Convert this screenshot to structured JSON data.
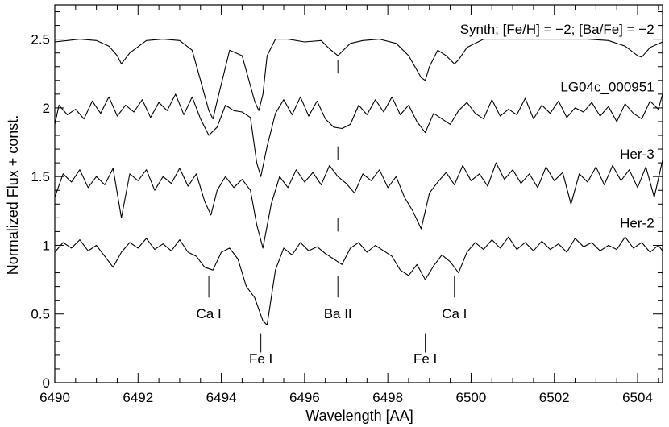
{
  "chart_data": {
    "type": "line",
    "title": "",
    "xlabel": "Wavelength [AA]",
    "ylabel": "Normalized Flux + const.",
    "xlim": [
      6490,
      6504.6
    ],
    "ylim": [
      0,
      2.75
    ],
    "grid": false,
    "legend": "none",
    "x_ticks": [
      6490,
      6492,
      6494,
      6496,
      6498,
      6500,
      6502,
      6504
    ],
    "y_ticks": [
      0,
      0.5,
      1,
      1.5,
      2,
      2.5
    ],
    "y_tick_labels": [
      "0",
      "0.5",
      "1",
      "1.5",
      "2",
      "2.5"
    ],
    "series": [
      {
        "name": "Synth; [Fe/H] = −2; [Ba/Fe] = −2",
        "x": [
          6490.0,
          6490.3,
          6490.6,
          6491.0,
          6491.3,
          6491.5,
          6491.6,
          6491.8,
          6492.2,
          6492.6,
          6493.0,
          6493.3,
          6493.5,
          6493.7,
          6493.8,
          6493.9,
          6494.2,
          6494.5,
          6494.8,
          6494.9,
          6495.0,
          6495.1,
          6495.3,
          6495.6,
          6496.0,
          6496.4,
          6496.6,
          6496.8,
          6496.9,
          6497.1,
          6497.4,
          6497.8,
          6498.2,
          6498.5,
          6498.8,
          6498.9,
          6499.0,
          6499.2,
          6499.4,
          6499.6,
          6499.7,
          6499.9,
          6500.3,
          6500.8,
          6501.3,
          6501.8,
          6502.3,
          6502.8,
          6503.3,
          6503.7,
          6504.0,
          6504.1,
          6504.3,
          6504.6
        ],
        "values": [
          2.48,
          2.49,
          2.5,
          2.49,
          2.45,
          2.38,
          2.32,
          2.4,
          2.49,
          2.5,
          2.49,
          2.42,
          2.2,
          1.98,
          1.92,
          2.05,
          2.42,
          2.38,
          2.05,
          1.98,
          2.1,
          2.38,
          2.5,
          2.5,
          2.48,
          2.49,
          2.43,
          2.38,
          2.41,
          2.47,
          2.49,
          2.5,
          2.47,
          2.38,
          2.22,
          2.2,
          2.3,
          2.42,
          2.38,
          2.32,
          2.35,
          2.44,
          2.5,
          2.5,
          2.5,
          2.5,
          2.5,
          2.5,
          2.49,
          2.45,
          2.38,
          2.37,
          2.44,
          2.48
        ]
      },
      {
        "name": "LG04c_000951",
        "x": [
          6490.0,
          6490.1,
          6490.3,
          6490.5,
          6490.7,
          6490.9,
          6491.1,
          6491.3,
          6491.5,
          6491.7,
          6491.9,
          6492.1,
          6492.3,
          6492.5,
          6492.7,
          6492.9,
          6493.1,
          6493.3,
          6493.5,
          6493.7,
          6493.9,
          6494.1,
          6494.3,
          6494.5,
          6494.7,
          6494.85,
          6494.95,
          6495.1,
          6495.3,
          6495.5,
          6495.7,
          6495.9,
          6496.1,
          6496.3,
          6496.5,
          6496.7,
          6496.9,
          6497.1,
          6497.3,
          6497.5,
          6497.7,
          6497.9,
          6498.1,
          6498.3,
          6498.5,
          6498.7,
          6498.9,
          6499.1,
          6499.3,
          6499.5,
          6499.7,
          6499.9,
          6500.1,
          6500.3,
          6500.5,
          6500.7,
          6500.9,
          6501.1,
          6501.3,
          6501.5,
          6501.7,
          6501.9,
          6502.1,
          6502.3,
          6502.5,
          6502.7,
          6502.9,
          6503.1,
          6503.3,
          6503.5,
          6503.7,
          6503.9,
          6504.1,
          6504.3,
          6504.5,
          6504.6
        ],
        "values": [
          1.88,
          2.02,
          1.95,
          1.99,
          1.92,
          2.05,
          1.96,
          2.08,
          1.94,
          2.02,
          1.97,
          2.06,
          1.93,
          2.04,
          1.98,
          2.1,
          1.95,
          2.08,
          1.92,
          1.8,
          1.86,
          2.02,
          1.98,
          1.97,
          1.93,
          1.6,
          1.5,
          1.72,
          1.96,
          2.06,
          1.95,
          2.08,
          1.94,
          2.05,
          1.92,
          1.86,
          1.85,
          1.88,
          2.02,
          1.95,
          2.06,
          1.97,
          2.08,
          1.95,
          2.02,
          1.9,
          1.82,
          1.96,
          1.92,
          1.88,
          1.98,
          2.04,
          1.96,
          1.92,
          2.06,
          1.94,
          1.99,
          1.95,
          2.07,
          1.92,
          2.02,
          1.96,
          2.05,
          1.93,
          2.0,
          1.97,
          2.04,
          1.94,
          2.01,
          1.9,
          2.03,
          1.96,
          1.92,
          2.05,
          1.99,
          2.1
        ]
      },
      {
        "name": "Her-3",
        "x": [
          6490.0,
          6490.2,
          6490.4,
          6490.6,
          6490.8,
          6491.0,
          6491.2,
          6491.4,
          6491.6,
          6491.8,
          6492.0,
          6492.2,
          6492.4,
          6492.6,
          6492.8,
          6493.0,
          6493.2,
          6493.4,
          6493.6,
          6493.75,
          6493.9,
          6494.1,
          6494.3,
          6494.5,
          6494.7,
          6494.85,
          6495.0,
          6495.2,
          6495.4,
          6495.6,
          6495.8,
          6496.0,
          6496.2,
          6496.4,
          6496.6,
          6496.8,
          6497.0,
          6497.2,
          6497.4,
          6497.6,
          6497.8,
          6498.0,
          6498.2,
          6498.4,
          6498.6,
          6498.8,
          6499.0,
          6499.2,
          6499.4,
          6499.6,
          6499.8,
          6500.0,
          6500.2,
          6500.4,
          6500.6,
          6500.8,
          6501.0,
          6501.2,
          6501.4,
          6501.6,
          6501.8,
          6502.0,
          6502.2,
          6502.4,
          6502.6,
          6502.8,
          6503.0,
          6503.2,
          6503.4,
          6503.6,
          6503.8,
          6504.0,
          6504.2,
          6504.4,
          6504.6
        ],
        "values": [
          1.35,
          1.52,
          1.46,
          1.55,
          1.42,
          1.5,
          1.44,
          1.56,
          1.2,
          1.52,
          1.47,
          1.55,
          1.4,
          1.5,
          1.45,
          1.56,
          1.43,
          1.52,
          1.32,
          1.22,
          1.4,
          1.5,
          1.42,
          1.48,
          1.4,
          1.15,
          0.98,
          1.3,
          1.5,
          1.42,
          1.55,
          1.46,
          1.53,
          1.44,
          1.58,
          1.5,
          1.45,
          1.38,
          1.52,
          1.47,
          1.55,
          1.42,
          1.5,
          1.35,
          1.25,
          1.12,
          1.38,
          1.46,
          1.53,
          1.44,
          1.58,
          1.47,
          1.52,
          1.43,
          1.6,
          1.48,
          1.55,
          1.45,
          1.52,
          1.42,
          1.57,
          1.47,
          1.53,
          1.3,
          1.52,
          1.46,
          1.57,
          1.44,
          1.58,
          1.47,
          1.55,
          1.42,
          1.57,
          1.35,
          1.62
        ]
      },
      {
        "name": "Her-2",
        "x": [
          6490.0,
          6490.2,
          6490.4,
          6490.6,
          6490.8,
          6491.0,
          6491.2,
          6491.4,
          6491.6,
          6491.8,
          6492.0,
          6492.2,
          6492.4,
          6492.6,
          6492.8,
          6493.0,
          6493.2,
          6493.4,
          6493.6,
          6493.8,
          6494.0,
          6494.2,
          6494.4,
          6494.6,
          6494.8,
          6495.0,
          6495.1,
          6495.3,
          6495.5,
          6495.7,
          6495.9,
          6496.1,
          6496.3,
          6496.5,
          6496.7,
          6496.9,
          6497.1,
          6497.3,
          6497.5,
          6497.7,
          6497.9,
          6498.1,
          6498.3,
          6498.5,
          6498.7,
          6498.9,
          6499.1,
          6499.3,
          6499.5,
          6499.7,
          6499.9,
          6500.1,
          6500.3,
          6500.5,
          6500.7,
          6500.9,
          6501.1,
          6501.3,
          6501.5,
          6501.7,
          6501.9,
          6502.1,
          6502.3,
          6502.5,
          6502.7,
          6502.9,
          6503.1,
          6503.3,
          6503.5,
          6503.7,
          6503.9,
          6504.1,
          6504.3,
          6504.5,
          6504.6
        ],
        "values": [
          0.95,
          1.02,
          0.98,
          1.04,
          0.96,
          1.0,
          0.92,
          0.84,
          0.95,
          1.02,
          0.98,
          1.05,
          0.97,
          1.01,
          0.96,
          1.04,
          0.95,
          0.92,
          0.84,
          0.82,
          0.95,
          0.98,
          0.9,
          0.7,
          0.62,
          0.45,
          0.42,
          0.82,
          0.98,
          0.93,
          1.02,
          0.96,
          0.99,
          0.94,
          0.9,
          0.86,
          0.98,
          1.02,
          0.95,
          1.0,
          0.96,
          0.92,
          0.82,
          0.78,
          0.86,
          0.75,
          0.85,
          0.93,
          0.88,
          0.8,
          0.95,
          1.02,
          0.97,
          1.04,
          0.98,
          1.06,
          0.97,
          1.02,
          0.96,
          1.03,
          0.97,
          1.01,
          0.95,
          1.05,
          0.99,
          1.02,
          0.96,
          1.0,
          0.97,
          1.06,
          0.98,
          1.02,
          0.95,
          1.0,
          0.96
        ]
      }
    ],
    "annotations": {
      "series_labels": [
        {
          "text": "Synth;   [Fe/H] = −2;   [Ba/Fe] = −2",
          "x": 6504.4,
          "y": 2.54
        },
        {
          "text": "LG04c_000951",
          "x": 6504.4,
          "y": 2.12
        },
        {
          "text": "Her-3",
          "x": 6504.4,
          "y": 1.63
        },
        {
          "text": "Her-2",
          "x": 6504.4,
          "y": 1.13
        }
      ],
      "line_ids": [
        {
          "label": "Ca I",
          "x": 6493.7,
          "tick_y": [
            0.78,
            0.62
          ],
          "label_y": 0.47
        },
        {
          "label": "Fe I",
          "x": 6494.95,
          "tick_y": [
            0.36,
            0.22
          ],
          "label_y": 0.14
        },
        {
          "label": "Ba II",
          "x": 6496.8,
          "tick_y": [
            0.78,
            0.62
          ],
          "label_y": 0.47
        },
        {
          "label": "Fe I",
          "x": 6498.9,
          "tick_y": [
            0.36,
            0.22
          ],
          "label_y": 0.14
        },
        {
          "label": "Ca I",
          "x": 6499.6,
          "tick_y": [
            0.78,
            0.62
          ],
          "label_y": 0.47
        }
      ],
      "ba_dashes": [
        {
          "x": 6496.8,
          "y": [
            2.35,
            2.25
          ]
        },
        {
          "x": 6496.8,
          "y": [
            1.72,
            1.62
          ]
        },
        {
          "x": 6496.8,
          "y": [
            1.2,
            1.1
          ]
        }
      ]
    }
  }
}
